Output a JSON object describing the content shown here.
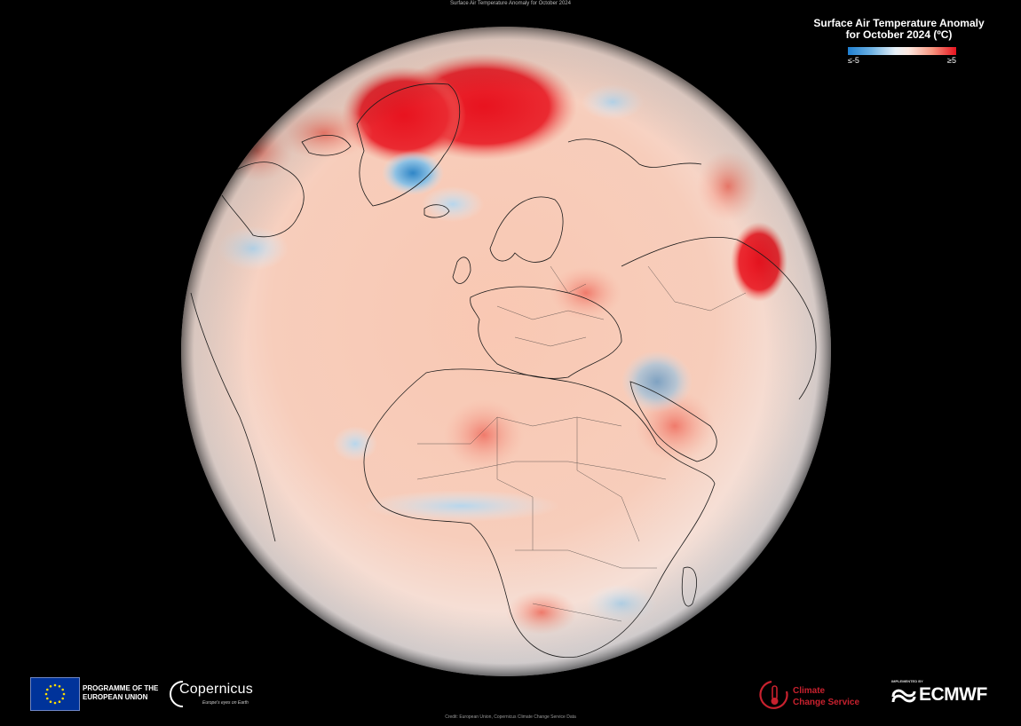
{
  "map": {
    "top_caption": "Surface Air Temperature Anomaly for October 2024",
    "legend": {
      "title_line1": "Surface Air Temperature Anomaly",
      "title_line2": "for October 2024 (ºC)",
      "min_label": "≤-5",
      "max_label": "≥5",
      "colors": [
        "#1f7fd1",
        "#6fb3e4",
        "#e8f1f8",
        "#fde9e1",
        "#f79680",
        "#e8131f"
      ]
    },
    "credit": "Credit: European Union, Copernicus Climate Change Service Data"
  },
  "logos": {
    "eu_text_line1": "PROGRAMME OF THE",
    "eu_text_line2": "EUROPEAN UNION",
    "copernicus_word": "Copernicus",
    "copernicus_tagline": "Europe's eyes on Earth",
    "c3s_line1": "Climate",
    "c3s_line2": "Change Service",
    "ecmwf_small": "IMPLEMENTED BY",
    "ecmwf_word": "ECMWF"
  }
}
